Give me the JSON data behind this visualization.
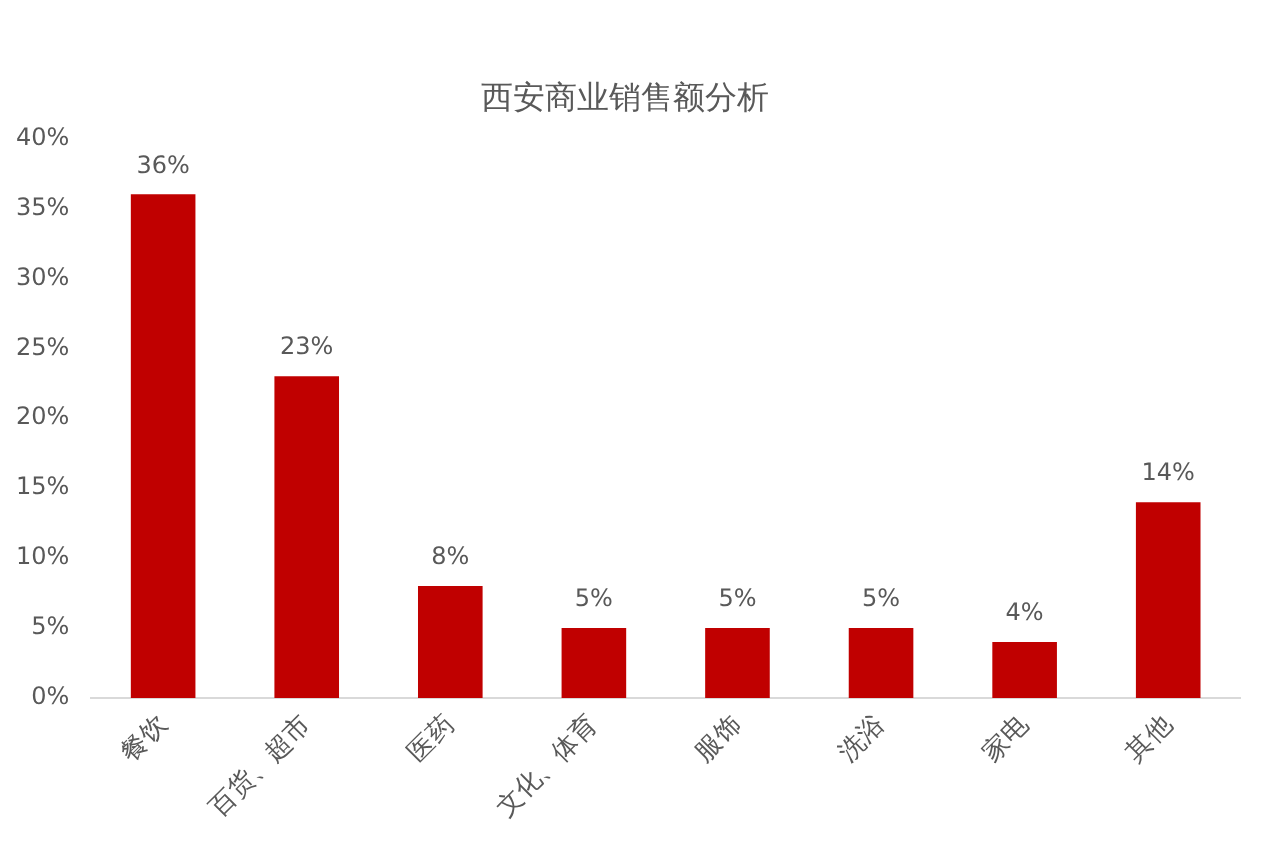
{
  "chart_data": {
    "type": "bar",
    "title": "西安商业销售额分析",
    "categories": [
      "餐饮",
      "百货、超市",
      "医药",
      "文化、体育",
      "服饰",
      "洗浴",
      "家电",
      "其他"
    ],
    "values": [
      36,
      23,
      8,
      5,
      5,
      5,
      4,
      14
    ],
    "value_labels": [
      "36%",
      "23%",
      "8%",
      "5%",
      "5%",
      "5%",
      "4%",
      "14%"
    ],
    "color": "#c00000",
    "ylim": [
      0,
      40
    ],
    "yticks": [
      {
        "value": 0,
        "label": "0%"
      },
      {
        "value": 5,
        "label": "5%"
      },
      {
        "value": 10,
        "label": "10%"
      },
      {
        "value": 15,
        "label": "15%"
      },
      {
        "value": 20,
        "label": "20%"
      },
      {
        "value": 25,
        "label": "25%"
      },
      {
        "value": 30,
        "label": "30%"
      },
      {
        "value": 35,
        "label": "35%"
      },
      {
        "value": 40,
        "label": "40%"
      }
    ],
    "grid": false,
    "legend": false
  }
}
